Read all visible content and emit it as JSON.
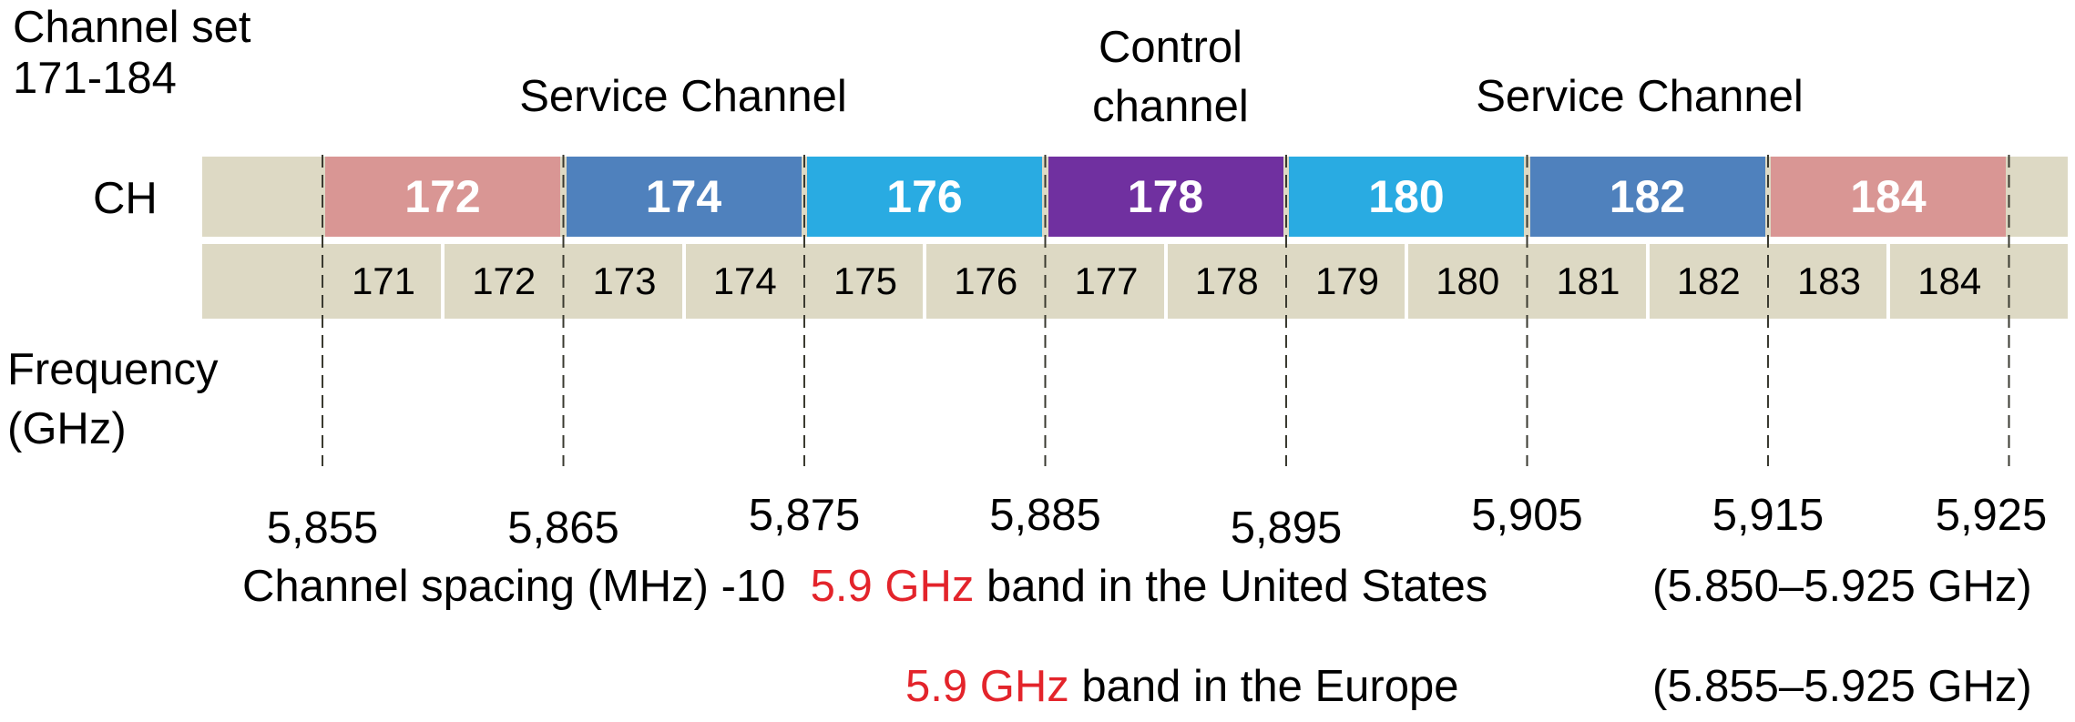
{
  "title_lines": [
    "Channel set",
    "171-184"
  ],
  "service_channel_left": "Service Channel",
  "control_channel_lines": [
    "Control",
    "channel"
  ],
  "service_channel_right": "Service Channel",
  "ch_label": "CH",
  "frequency_label_lines": [
    "Frequency",
    "(GHz)"
  ],
  "channels": [
    {
      "label": "172",
      "color": "#d99694"
    },
    {
      "label": "174",
      "color": "#4f81bd"
    },
    {
      "label": "176",
      "color": "#29abe2"
    },
    {
      "label": "178",
      "color": "#7030a0"
    },
    {
      "label": "180",
      "color": "#29abe2"
    },
    {
      "label": "182",
      "color": "#4f81bd"
    },
    {
      "label": "184",
      "color": "#d99694"
    }
  ],
  "sub_channels": [
    "171",
    "172",
    "173",
    "174",
    "175",
    "176",
    "177",
    "178",
    "179",
    "180",
    "181",
    "182",
    "183",
    "184"
  ],
  "frequencies": [
    "5,855",
    "5,865",
    "5,875",
    "5,885",
    "5,895",
    "5,905",
    "5,915",
    "5,925"
  ],
  "legend": {
    "spacing": "Channel  spacing  (MHz)   -10",
    "band_red": "5.9 GHz",
    "us_text": " band in the United States",
    "us_range": "(5.850–5.925 GHz)",
    "eu_text": " band in the Europe",
    "eu_range": "(5.855–5.925 GHz)"
  }
}
